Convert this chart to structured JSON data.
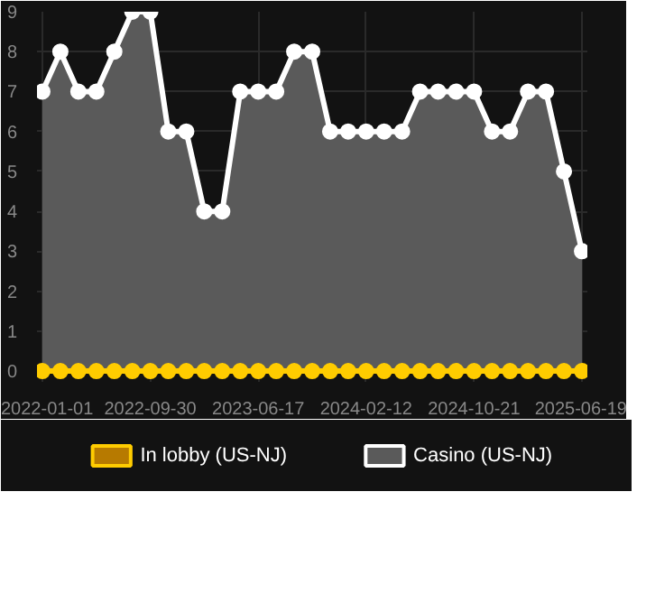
{
  "chart_data": {
    "type": "area",
    "categories": [
      "2022-01-01",
      null,
      null,
      null,
      null,
      null,
      "2022-09-30",
      null,
      null,
      null,
      null,
      null,
      "2023-06-17",
      null,
      null,
      null,
      null,
      null,
      "2024-02-12",
      null,
      null,
      null,
      null,
      null,
      "2024-10-21",
      null,
      null,
      null,
      null,
      null,
      "2025-06-19"
    ],
    "series": [
      {
        "name": "In lobby (US-NJ)",
        "type": "line",
        "color": "#ffcc00",
        "values": [
          0,
          0,
          0,
          0,
          0,
          0,
          0,
          0,
          0,
          0,
          0,
          0,
          0,
          0,
          0,
          0,
          0,
          0,
          0,
          0,
          0,
          0,
          0,
          0,
          0,
          0,
          0,
          0,
          0,
          0,
          0
        ]
      },
      {
        "name": "Casino (US-NJ)",
        "color": "#ffffff",
        "values": [
          7,
          8,
          7,
          7,
          8,
          9,
          9,
          6,
          6,
          4,
          4,
          7,
          7,
          7,
          8,
          8,
          6,
          6,
          6,
          6,
          6,
          7,
          7,
          7,
          7,
          6,
          6,
          7,
          7,
          5,
          3
        ]
      }
    ],
    "ylim": [
      0,
      9
    ],
    "yticks": [
      0,
      1,
      2,
      3,
      4,
      5,
      6,
      7,
      8,
      9
    ],
    "grid": true,
    "legend": "bottom",
    "marker": "circle"
  }
}
